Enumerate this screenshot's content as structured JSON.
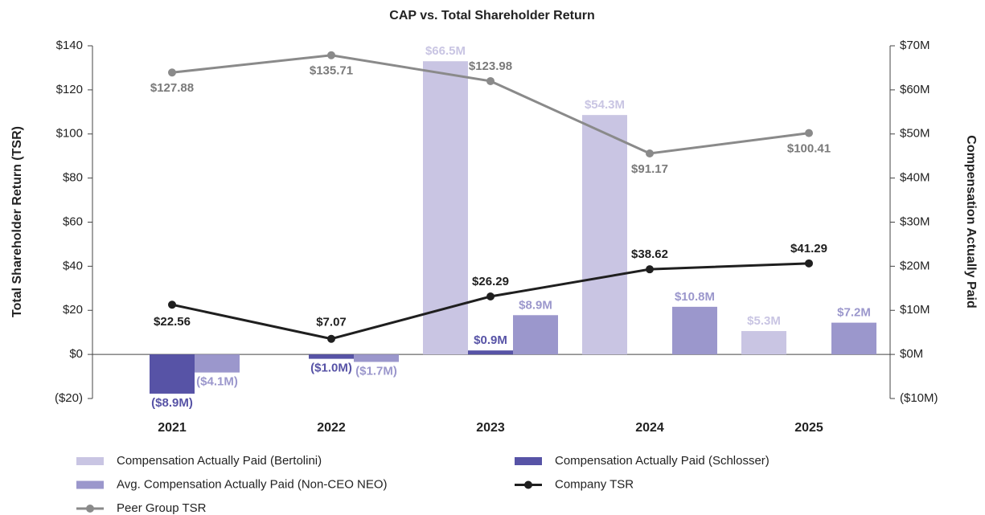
{
  "chart_data": {
    "type": "combo",
    "title": "CAP vs. Total Shareholder Return",
    "y_label": "Total Shareholder Return (TSR)",
    "y2_label": "Compensation Actually Paid",
    "categories": [
      "2021",
      "2022",
      "2023",
      "2024",
      "2025"
    ],
    "ylim": [
      -20,
      140
    ],
    "yticks": [
      {
        "value": -20,
        "label": "($20)"
      },
      {
        "value": 0,
        "label": "$0"
      },
      {
        "value": 20,
        "label": "$20"
      },
      {
        "value": 40,
        "label": "$40"
      },
      {
        "value": 60,
        "label": "$60"
      },
      {
        "value": 80,
        "label": "$80"
      },
      {
        "value": 100,
        "label": "$100"
      },
      {
        "value": 120,
        "label": "$120"
      },
      {
        "value": 140,
        "label": "$140"
      }
    ],
    "y2lim": [
      -10,
      70
    ],
    "y2ticks": [
      {
        "value": -10,
        "label": "($10M)"
      },
      {
        "value": 0,
        "label": "$0M"
      },
      {
        "value": 10,
        "label": "$10M"
      },
      {
        "value": 20,
        "label": "$20M"
      },
      {
        "value": 30,
        "label": "$30M"
      },
      {
        "value": 40,
        "label": "$40M"
      },
      {
        "value": 50,
        "label": "$50M"
      },
      {
        "value": 60,
        "label": "$60M"
      },
      {
        "value": 70,
        "label": "$70M"
      }
    ],
    "grid": false,
    "legend": "bottom",
    "series": [
      {
        "name": "Compensation Actually Paid (Bertolini)",
        "type": "bar",
        "axis": "y2",
        "color": "#c9c5e3",
        "values": [
          null,
          null,
          66.5,
          54.3,
          5.3
        ],
        "value_labels": [
          null,
          null,
          "$66.5M",
          "$54.3M",
          "$5.3M"
        ]
      },
      {
        "name": "Compensation Actually Paid (Schlosser)",
        "type": "bar",
        "axis": "y2",
        "color": "#5753a6",
        "values": [
          -8.9,
          -1.0,
          0.9,
          null,
          null
        ],
        "value_labels": [
          "($8.9M)",
          "($1.0M)",
          "$0.9M",
          null,
          null
        ]
      },
      {
        "name": "Avg. Compensation Actually Paid (Non-CEO NEO)",
        "type": "bar",
        "axis": "y2",
        "color": "#9b97cc",
        "values": [
          -4.1,
          -1.7,
          8.9,
          10.8,
          7.2
        ],
        "value_labels": [
          "($4.1M)",
          "($1.7M)",
          "$8.9M",
          "$10.8M",
          "$7.2M"
        ]
      },
      {
        "name": "Company TSR",
        "type": "line",
        "color": "#1f1f1f",
        "values": [
          22.56,
          7.07,
          26.29,
          38.62,
          41.29
        ],
        "value_labels": [
          "$22.56",
          "$7.07",
          "$26.29",
          "$38.62",
          "$41.29"
        ]
      },
      {
        "name": "Peer Group TSR",
        "type": "line",
        "color": "#8a8a8a",
        "values": [
          127.88,
          135.71,
          123.98,
          91.17,
          100.41
        ],
        "value_labels": [
          "$127.88",
          "$135.71",
          "$123.98",
          "$91.17",
          "$100.41"
        ]
      }
    ]
  }
}
